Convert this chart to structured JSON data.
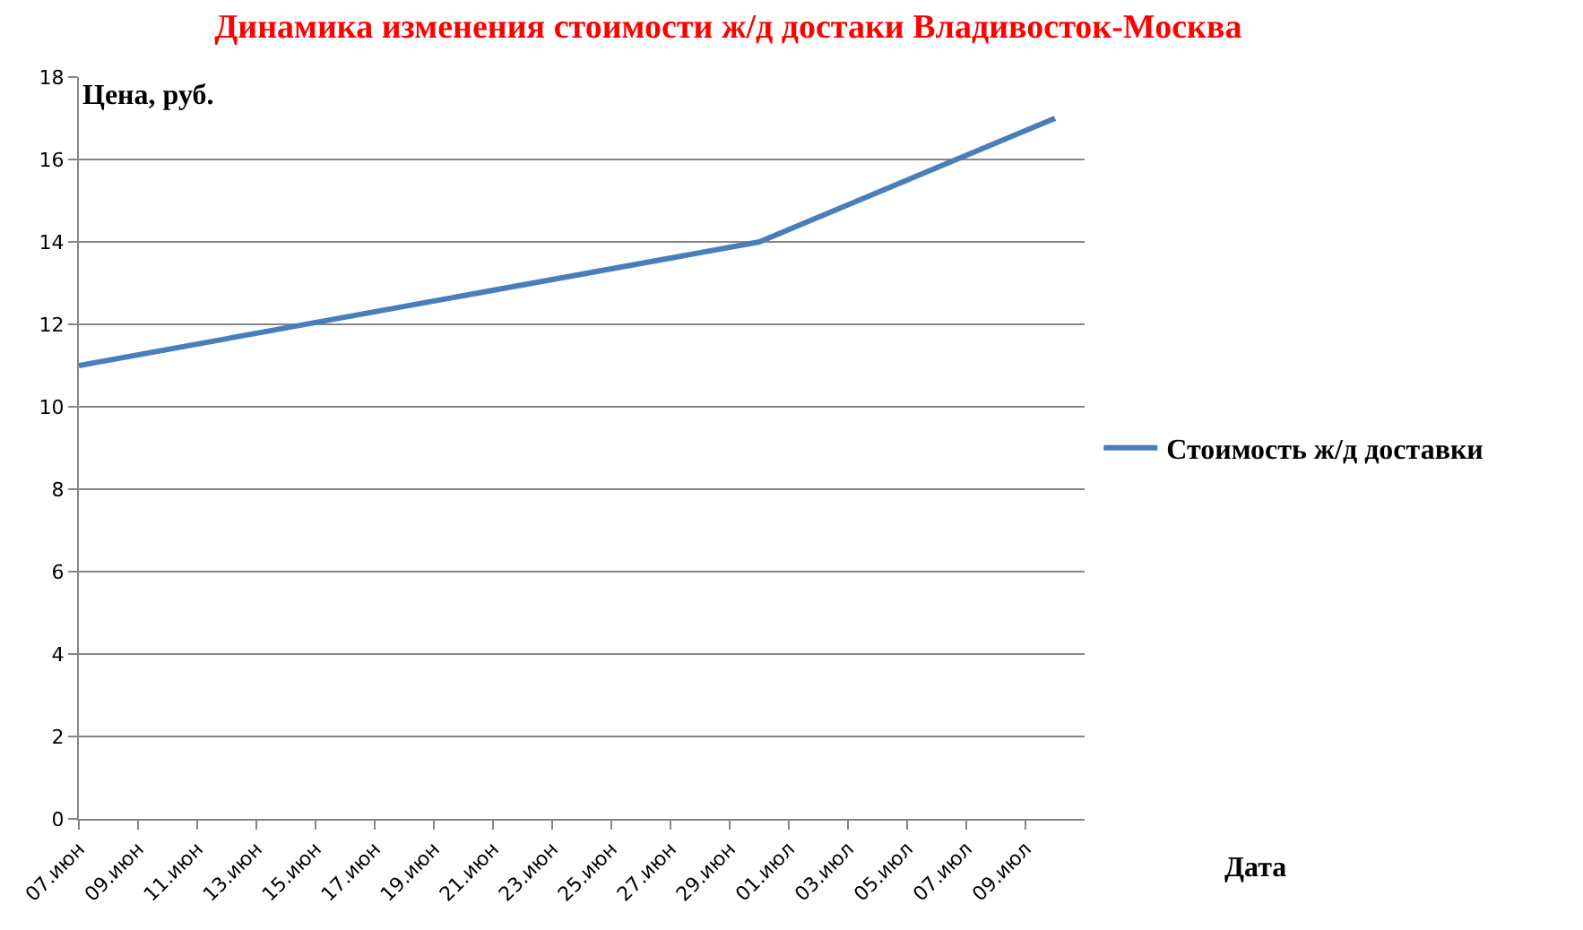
{
  "chart_data": {
    "type": "line",
    "title": "Динамика изменения стоимости ж/д достаки Владивосток-Москва",
    "xlabel": "Дата",
    "ylabel": "Цена, руб.",
    "x": [
      "--06-07",
      "--06-30",
      "--07-10"
    ],
    "series": [
      {
        "name": "Стоимость ж/д доставки",
        "color": "#4a7ebb",
        "values": [
          11,
          14,
          17
        ]
      }
    ],
    "xlim": [
      "--06-07",
      "--07-11"
    ],
    "xticks": [
      {
        "value": "--06-07",
        "label": "07.июн"
      },
      {
        "value": "--06-09",
        "label": "09.июн"
      },
      {
        "value": "--06-11",
        "label": "11.июн"
      },
      {
        "value": "--06-13",
        "label": "13.июн"
      },
      {
        "value": "--06-15",
        "label": "15.июн"
      },
      {
        "value": "--06-17",
        "label": "17.июн"
      },
      {
        "value": "--06-19",
        "label": "19.июн"
      },
      {
        "value": "--06-21",
        "label": "21.июн"
      },
      {
        "value": "--06-23",
        "label": "23.июн"
      },
      {
        "value": "--06-25",
        "label": "25.июн"
      },
      {
        "value": "--06-27",
        "label": "27.июн"
      },
      {
        "value": "--06-29",
        "label": "29.июн"
      },
      {
        "value": "--07-01",
        "label": "01.июл"
      },
      {
        "value": "--07-03",
        "label": "03.июл"
      },
      {
        "value": "--07-05",
        "label": "05.июл"
      },
      {
        "value": "--07-07",
        "label": "07.июл"
      },
      {
        "value": "--07-09",
        "label": "09.июл"
      }
    ],
    "ylim": [
      0,
      18
    ],
    "yticks": [
      0,
      2,
      4,
      6,
      8,
      10,
      12,
      14,
      16,
      18
    ],
    "grid": "y",
    "legend": "right",
    "marker": "none",
    "line_style": "solid"
  }
}
